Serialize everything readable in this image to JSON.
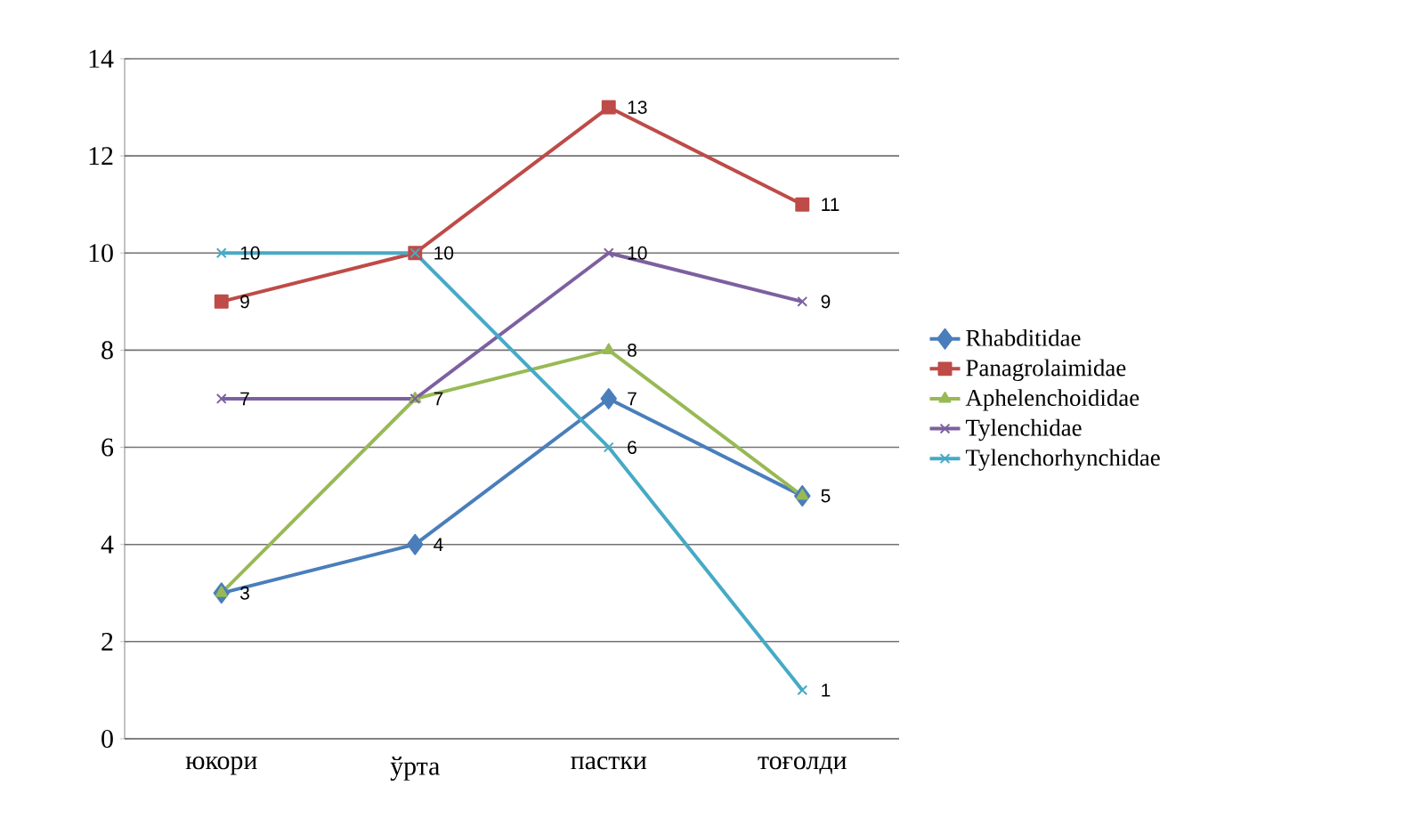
{
  "chart_data": {
    "type": "line",
    "categories": [
      "юкори",
      "ўрта",
      "пастки",
      "тоғолди"
    ],
    "series": [
      {
        "name": "Rhabditidae",
        "color": "#4a7ebb",
        "marker": "diamond",
        "values": [
          3,
          4,
          7,
          5
        ],
        "value_labels": [
          null,
          "4",
          "7",
          null
        ]
      },
      {
        "name": "Panagrolaimidae",
        "color": "#be4b48",
        "marker": "square",
        "values": [
          9,
          10,
          13,
          11
        ],
        "value_labels": [
          "9",
          "10",
          "13",
          "11"
        ]
      },
      {
        "name": "Aphelenchoididae",
        "color": "#98b954",
        "marker": "triangle",
        "values": [
          3,
          7,
          8,
          5
        ],
        "value_labels": [
          "3",
          "7",
          "8",
          "5"
        ]
      },
      {
        "name": "Tylenchidae",
        "color": "#7d60a0",
        "marker": "cross",
        "values": [
          7,
          7,
          10,
          9
        ],
        "value_labels": [
          "7",
          null,
          "10",
          "9"
        ]
      },
      {
        "name": "Tylenchorhynchidae",
        "color": "#46aac5",
        "marker": "cross",
        "values": [
          10,
          10,
          6,
          1
        ],
        "value_labels": [
          "10",
          null,
          "6",
          "1"
        ]
      }
    ],
    "ylim": [
      0,
      14
    ],
    "yticks": [
      0,
      2,
      4,
      6,
      8,
      10,
      12,
      14
    ],
    "grid": "y",
    "legend": "right",
    "line_style": "solid"
  }
}
